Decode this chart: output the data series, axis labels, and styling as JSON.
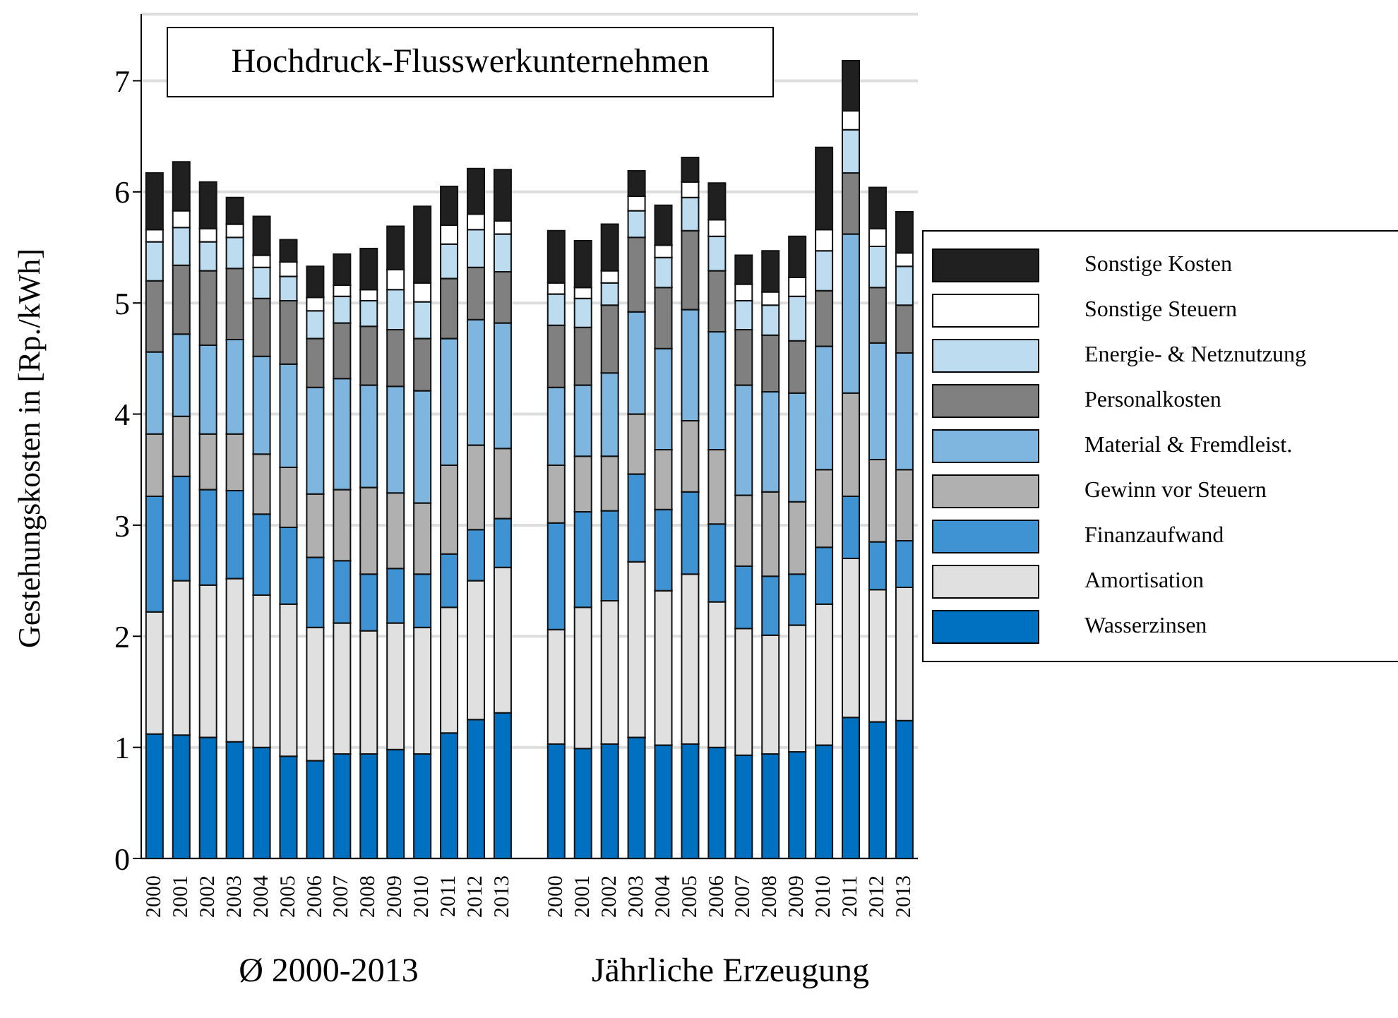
{
  "chart_data": {
    "type": "bar",
    "stacked": true,
    "title": "Hochdruck-Flusswerkunternehmen",
    "ylabel": "Gestehungskosten in [Rp./kWh]",
    "annotations": [
      "Ø 2000-2013",
      "Jährliche Erzeugung"
    ],
    "categories": [
      "2000",
      "2001",
      "2002",
      "2003",
      "2004",
      "2005",
      "2006",
      "2007",
      "2008",
      "2009",
      "2010",
      "2011",
      "2012",
      "2013",
      null,
      "2000",
      "2001",
      "2002",
      "2003",
      "2004",
      "2005",
      "2006",
      "2007",
      "2008",
      "2009",
      "2010",
      "2011",
      "2012",
      "2013"
    ],
    "series": [
      {
        "name": "Wasserzinsen",
        "color": "#0070c0",
        "values": [
          1.12,
          1.11,
          1.09,
          1.05,
          1.0,
          0.92,
          0.88,
          0.94,
          0.94,
          0.98,
          0.94,
          1.13,
          1.25,
          1.31,
          null,
          1.03,
          0.99,
          1.03,
          1.09,
          1.02,
          1.03,
          1.0,
          0.93,
          0.94,
          0.96,
          1.02,
          1.27,
          1.23,
          1.24
        ]
      },
      {
        "name": "Amortisation",
        "color": "#e0e0e0",
        "values": [
          1.1,
          1.39,
          1.37,
          1.47,
          1.37,
          1.37,
          1.2,
          1.18,
          1.11,
          1.14,
          1.14,
          1.13,
          1.25,
          1.31,
          null,
          1.03,
          1.27,
          1.29,
          1.58,
          1.39,
          1.53,
          1.31,
          1.14,
          1.07,
          1.14,
          1.27,
          1.43,
          1.19,
          1.2
        ]
      },
      {
        "name": "Finanzaufwand",
        "color": "#3f93d3",
        "values": [
          1.04,
          0.94,
          0.86,
          0.79,
          0.73,
          0.69,
          0.63,
          0.56,
          0.51,
          0.49,
          0.48,
          0.48,
          0.46,
          0.44,
          null,
          0.96,
          0.86,
          0.81,
          0.79,
          0.73,
          0.74,
          0.7,
          0.56,
          0.53,
          0.46,
          0.51,
          0.56,
          0.43,
          0.42
        ]
      },
      {
        "name": "Gewinn vor Steuern",
        "color": "#b0b0b0",
        "values": [
          0.56,
          0.54,
          0.5,
          0.51,
          0.54,
          0.54,
          0.57,
          0.64,
          0.78,
          0.68,
          0.64,
          0.8,
          0.76,
          0.63,
          null,
          0.52,
          0.5,
          0.49,
          0.54,
          0.54,
          0.64,
          0.67,
          0.64,
          0.76,
          0.65,
          0.7,
          0.93,
          0.74,
          0.64
        ]
      },
      {
        "name": "Material & Fremdleist.",
        "color": "#7fb6e0",
        "values": [
          0.74,
          0.74,
          0.8,
          0.85,
          0.88,
          0.93,
          0.96,
          1.0,
          0.92,
          0.96,
          1.01,
          1.14,
          1.13,
          1.13,
          null,
          0.7,
          0.64,
          0.75,
          0.92,
          0.91,
          1.0,
          1.06,
          0.99,
          0.9,
          0.98,
          1.11,
          1.43,
          1.05,
          1.05
        ]
      },
      {
        "name": "Personalkosten",
        "color": "#808080",
        "values": [
          0.64,
          0.62,
          0.67,
          0.64,
          0.52,
          0.57,
          0.44,
          0.5,
          0.53,
          0.51,
          0.47,
          0.54,
          0.47,
          0.46,
          null,
          0.56,
          0.52,
          0.61,
          0.67,
          0.55,
          0.71,
          0.55,
          0.5,
          0.51,
          0.47,
          0.5,
          0.55,
          0.5,
          0.43
        ]
      },
      {
        "name": "Energie- & Netznutzung",
        "color": "#bddcf0",
        "values": [
          0.35,
          0.34,
          0.26,
          0.28,
          0.28,
          0.22,
          0.25,
          0.24,
          0.23,
          0.36,
          0.33,
          0.31,
          0.34,
          0.34,
          null,
          0.28,
          0.26,
          0.2,
          0.24,
          0.27,
          0.3,
          0.31,
          0.26,
          0.27,
          0.4,
          0.36,
          0.39,
          0.37,
          0.35
        ]
      },
      {
        "name": "Sonstige Steuern",
        "color": "#ffffff",
        "values": [
          0.11,
          0.15,
          0.12,
          0.12,
          0.11,
          0.13,
          0.12,
          0.1,
          0.1,
          0.18,
          0.17,
          0.17,
          0.14,
          0.12,
          null,
          0.1,
          0.1,
          0.11,
          0.13,
          0.11,
          0.14,
          0.15,
          0.15,
          0.12,
          0.17,
          0.19,
          0.17,
          0.16,
          0.12
        ]
      },
      {
        "name": "Sonstige Kosten",
        "color": "#202020",
        "values": [
          0.51,
          0.44,
          0.42,
          0.24,
          0.35,
          0.2,
          0.28,
          0.28,
          0.37,
          0.39,
          0.69,
          0.35,
          0.41,
          0.46,
          null,
          0.47,
          0.42,
          0.42,
          0.23,
          0.36,
          0.22,
          0.33,
          0.26,
          0.37,
          0.37,
          0.74,
          0.45,
          0.37,
          0.37
        ]
      }
    ],
    "ylim": [
      0,
      7.6
    ],
    "yticks": [
      0,
      1,
      2,
      3,
      4,
      5,
      6,
      7
    ],
    "grid": "y",
    "legend": "right"
  }
}
